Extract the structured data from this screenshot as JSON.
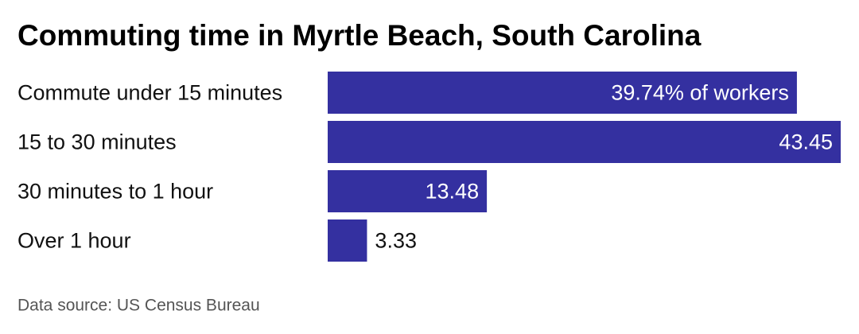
{
  "chart_data": {
    "type": "bar",
    "orientation": "horizontal",
    "title": "Commuting time in Myrtle Beach, South Carolina",
    "categories": [
      "Commute under 15 minutes",
      "15 to 30 minutes",
      "30 minutes to 1 hour",
      "Over 1 hour"
    ],
    "values": [
      39.74,
      43.45,
      13.48,
      3.33
    ],
    "value_labels": [
      "39.74% of workers",
      "43.45",
      "13.48",
      "3.33"
    ],
    "color": "#3430a0",
    "source": "Data source: US Census Bureau"
  }
}
